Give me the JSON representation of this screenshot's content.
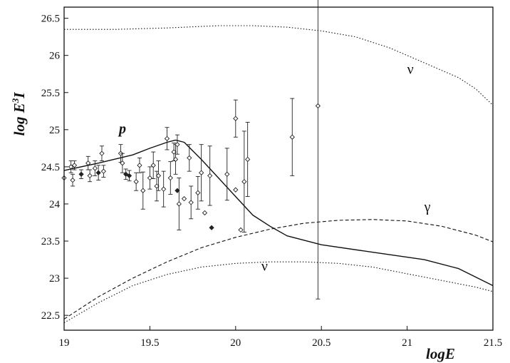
{
  "chart_data": {
    "type": "scatter",
    "xlabel": "logE",
    "ylabel": "log E³I",
    "ylabel_parts": {
      "base": "log E",
      "sup": "3",
      "tail": "I"
    },
    "xlim": [
      19,
      21.5
    ],
    "ylim": [
      22.3,
      26.65
    ],
    "xticks": [
      19,
      19.5,
      20,
      20.5,
      21,
      21.5
    ],
    "xtick_labels": [
      "19",
      "19.5",
      "20",
      "20.5",
      "21",
      "21.5"
    ],
    "yticks": [
      22.5,
      23,
      23.5,
      24,
      24.5,
      25,
      25.5,
      26,
      26.5
    ],
    "ytick_labels": [
      "22.5",
      "23",
      "23.5",
      "24",
      "24.5",
      "25",
      "25.5",
      "26",
      "26.5"
    ],
    "grid": false,
    "series": [
      {
        "name": "p",
        "style": "solid",
        "x": [
          19.0,
          19.2,
          19.4,
          19.5,
          19.6,
          19.65,
          19.7,
          19.8,
          19.9,
          20.0,
          20.1,
          20.2,
          20.3,
          20.5,
          20.8,
          21.1,
          21.3,
          21.5
        ],
        "y": [
          24.45,
          24.55,
          24.66,
          24.75,
          24.83,
          24.86,
          24.83,
          24.6,
          24.35,
          24.1,
          23.85,
          23.7,
          23.57,
          23.45,
          23.35,
          23.25,
          23.13,
          22.9
        ]
      },
      {
        "name": "γ",
        "style": "dashed",
        "x": [
          19.0,
          19.2,
          19.4,
          19.6,
          19.8,
          20.0,
          20.2,
          20.4,
          20.6,
          20.8,
          21.0,
          21.2,
          21.4,
          21.5
        ],
        "y": [
          22.45,
          22.75,
          23.0,
          23.22,
          23.41,
          23.55,
          23.66,
          23.74,
          23.78,
          23.79,
          23.77,
          23.7,
          23.58,
          23.49
        ]
      },
      {
        "name": "ν",
        "style": "dotted",
        "x": [
          19.0,
          19.2,
          19.4,
          19.6,
          19.8,
          20.0,
          20.2,
          20.4,
          20.6,
          20.8,
          21.0,
          21.2,
          21.4,
          21.5
        ],
        "y": [
          22.4,
          22.67,
          22.9,
          23.05,
          23.15,
          23.2,
          23.22,
          23.22,
          23.2,
          23.15,
          23.06,
          22.97,
          22.88,
          22.82
        ]
      },
      {
        "name": "ν",
        "style": "dotted",
        "x": [
          19.0,
          19.3,
          19.6,
          19.9,
          20.1,
          20.3,
          20.5,
          20.7,
          20.9,
          21.1,
          21.3,
          21.4,
          21.5
        ],
        "y": [
          26.35,
          26.35,
          26.37,
          26.4,
          26.4,
          26.38,
          26.33,
          26.25,
          26.1,
          25.9,
          25.7,
          25.55,
          25.33
        ]
      }
    ],
    "curve_labels": [
      {
        "text": "p",
        "x": 19.32,
        "y": 24.95,
        "italic": true
      },
      {
        "text": "γ",
        "x": 21.1,
        "y": 23.9,
        "italic": false
      },
      {
        "text": "ν",
        "x": 20.15,
        "y": 23.1,
        "italic": false
      },
      {
        "text": "ν",
        "x": 21.0,
        "y": 25.75,
        "italic": false
      }
    ],
    "data_points": [
      {
        "x": 19.0,
        "y": 24.35,
        "err": 0.0
      },
      {
        "x": 19.04,
        "y": 24.5,
        "err": 0.08
      },
      {
        "x": 19.05,
        "y": 24.32,
        "err": 0.08
      },
      {
        "x": 19.06,
        "y": 24.52,
        "err": 0.06
      },
      {
        "x": 19.1,
        "y": 24.4,
        "err": 0.06,
        "filled": true
      },
      {
        "x": 19.14,
        "y": 24.55,
        "err": 0.09
      },
      {
        "x": 19.15,
        "y": 24.38,
        "err": 0.08
      },
      {
        "x": 19.18,
        "y": 24.48,
        "err": 0.1
      },
      {
        "x": 19.2,
        "y": 24.42,
        "err": 0.1,
        "filled": true
      },
      {
        "x": 19.22,
        "y": 24.68,
        "err": 0.1
      },
      {
        "x": 19.23,
        "y": 24.44,
        "err": 0.08
      },
      {
        "x": 19.33,
        "y": 24.68,
        "err": 0.12
      },
      {
        "x": 19.34,
        "y": 24.55,
        "err": 0.13
      },
      {
        "x": 19.36,
        "y": 24.4,
        "err": 0.07,
        "filled": true
      },
      {
        "x": 19.38,
        "y": 24.38,
        "err": 0.07,
        "filled": true
      },
      {
        "x": 19.42,
        "y": 24.3,
        "err": 0.12
      },
      {
        "x": 19.44,
        "y": 24.52,
        "err": 0.1
      },
      {
        "x": 19.46,
        "y": 24.18,
        "err": 0.25
      },
      {
        "x": 19.5,
        "y": 24.35,
        "err": 0.15
      },
      {
        "x": 19.52,
        "y": 24.52,
        "err": 0.18
      },
      {
        "x": 19.54,
        "y": 24.24,
        "err": 0.2
      },
      {
        "x": 19.55,
        "y": 24.38,
        "err": 0.2
      },
      {
        "x": 19.58,
        "y": 24.2,
        "err": 0.24
      },
      {
        "x": 19.6,
        "y": 24.88,
        "err": 0.15
      },
      {
        "x": 19.62,
        "y": 24.35,
        "err": 0.22
      },
      {
        "x": 19.64,
        "y": 24.7,
        "err": 0.12
      },
      {
        "x": 19.65,
        "y": 24.6,
        "err": 0.2
      },
      {
        "x": 19.66,
        "y": 24.8,
        "err": 0.13
      },
      {
        "x": 19.66,
        "y": 24.18,
        "err": 0.0,
        "filled": true
      },
      {
        "x": 19.67,
        "y": 24.0,
        "err": 0.35
      },
      {
        "x": 19.7,
        "y": 24.07,
        "err": 0.0
      },
      {
        "x": 19.73,
        "y": 24.62,
        "err": 0.18
      },
      {
        "x": 19.74,
        "y": 24.02,
        "err": 0.22
      },
      {
        "x": 19.78,
        "y": 24.15,
        "err": 0.22
      },
      {
        "x": 19.8,
        "y": 24.42,
        "err": 0.38
      },
      {
        "x": 19.82,
        "y": 23.88,
        "err": 0.0
      },
      {
        "x": 19.85,
        "y": 24.38,
        "err": 0.4
      },
      {
        "x": 19.86,
        "y": 23.68,
        "err": 0.0,
        "filled": true
      },
      {
        "x": 19.95,
        "y": 24.4,
        "err": 0.35
      },
      {
        "x": 20.0,
        "y": 25.15,
        "err": 0.25
      },
      {
        "x": 20.0,
        "y": 24.19,
        "err": 0.0
      },
      {
        "x": 20.03,
        "y": 23.65,
        "err": 0.0
      },
      {
        "x": 20.05,
        "y": 24.3,
        "err": 0.68
      },
      {
        "x": 20.07,
        "y": 24.6,
        "err": 0.5
      },
      {
        "x": 20.33,
        "y": 24.9,
        "err": 0.52
      },
      {
        "x": 20.48,
        "y": 25.32,
        "err": 2.6
      }
    ]
  }
}
